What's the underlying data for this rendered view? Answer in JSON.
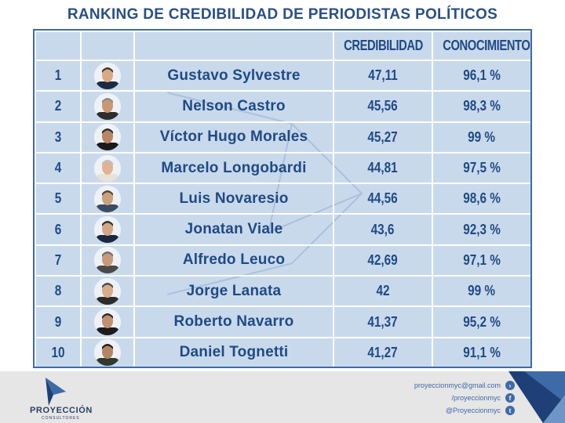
{
  "title": "RANKING DE CREDIBILIDAD DE PERIODISTAS POLÍTICOS",
  "headers": {
    "rank": "",
    "photo": "",
    "name": "",
    "credibility": "CREDIBILIDAD",
    "knowledge": "CONOCIMIENTO"
  },
  "rows": [
    {
      "rank": "1",
      "name": "Gustavo Sylvestre",
      "credibility": "47,11",
      "knowledge": "96,1 %"
    },
    {
      "rank": "2",
      "name": "Nelson Castro",
      "credibility": "45,56",
      "knowledge": "98,3 %"
    },
    {
      "rank": "3",
      "name": "Víctor Hugo Morales",
      "credibility": "45,27",
      "knowledge": "99 %"
    },
    {
      "rank": "4",
      "name": "Marcelo Longobardi",
      "credibility": "44,81",
      "knowledge": "97,5 %"
    },
    {
      "rank": "5",
      "name": "Luis Novaresio",
      "credibility": "44,56",
      "knowledge": "98,6 %"
    },
    {
      "rank": "6",
      "name": "Jonatan Viale",
      "credibility": "43,6",
      "knowledge": "92,3 %"
    },
    {
      "rank": "7",
      "name": "Alfredo Leuco",
      "credibility": "42,69",
      "knowledge": "97,1 %"
    },
    {
      "rank": "8",
      "name": "Jorge Lanata",
      "credibility": "42",
      "knowledge": "99 %"
    },
    {
      "rank": "9",
      "name": "Roberto Navarro",
      "credibility": "41,37",
      "knowledge": "95,2 %"
    },
    {
      "rank": "10",
      "name": "Daniel Tognetti",
      "credibility": "41,27",
      "knowledge": "91,1 %"
    }
  ],
  "footer": {
    "brand": "PROYECCIÓN",
    "brand_sub": "CONSULTORES",
    "contacts": [
      {
        "text": "proyeccionmyc@gmail.com",
        "icon": "arrow-icon"
      },
      {
        "text": "/proyeccionmyc",
        "icon": "facebook-icon"
      },
      {
        "text": "@Proyeccionmyc",
        "icon": "twitter-icon"
      }
    ]
  },
  "colors": {
    "title": "#2a4f86",
    "table_bg": "#c9d9ec",
    "table_border": "#3f6aa8",
    "text": "#1f4a85",
    "footer_bg": "#e6e6e6"
  }
}
